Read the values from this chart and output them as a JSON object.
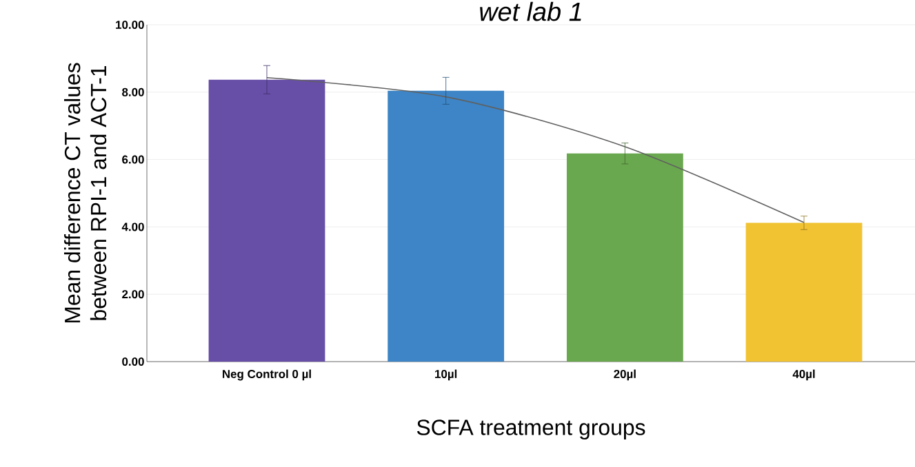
{
  "chart_data": {
    "type": "bar",
    "title": "wet lab 1",
    "xlabel": "SCFA treatment groups",
    "ylabel": "Mean difference CT values between RPI-1 and ACT-1",
    "categories": [
      "Neg Control 0 µl",
      "10µl",
      "20µl",
      "40µl"
    ],
    "series": [
      {
        "values": [
          8.37,
          8.04,
          6.18,
          4.12
        ],
        "colors": [
          "#674ea7",
          "#3d85c6",
          "#6aa84f",
          "#f1c232"
        ],
        "errors": [
          0.42,
          0.4,
          0.31,
          0.2
        ]
      },
      {
        "type": "line",
        "color": "#606060",
        "values": [
          8.43,
          7.86,
          6.38,
          4.13
        ]
      }
    ],
    "ylim": [
      0,
      10
    ],
    "yticks": [
      {
        "value": 0,
        "label": "0.00"
      },
      {
        "value": 2,
        "label": "2.00"
      },
      {
        "value": 4,
        "label": "4.00"
      },
      {
        "value": 6,
        "label": "6.00"
      },
      {
        "value": 8,
        "label": "8.00"
      },
      {
        "value": 10,
        "label": "10.00"
      }
    ],
    "grid": "y"
  }
}
